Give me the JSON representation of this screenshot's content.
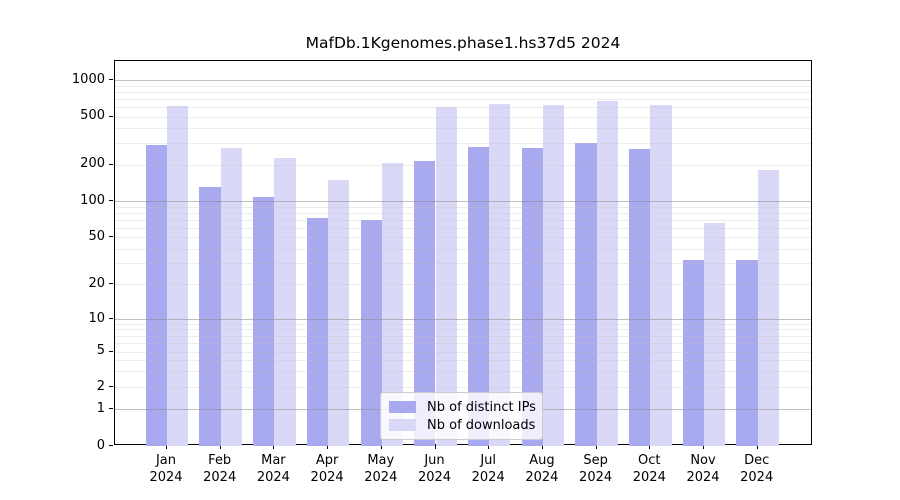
{
  "chart_data": {
    "type": "bar",
    "title": "MafDb.1Kgenomes.phase1.hs37d5 2024",
    "categories": [
      "Jan",
      "Feb",
      "Mar",
      "Apr",
      "May",
      "Jun",
      "Jul",
      "Aug",
      "Sep",
      "Oct",
      "Nov",
      "Dec"
    ],
    "xtick_year": "2024",
    "series": [
      {
        "name": "Nb of distinct IPs",
        "color": "#a9a9ef",
        "values": [
          290,
          130,
          108,
          72,
          70,
          215,
          280,
          275,
          305,
          268,
          32,
          32
        ]
      },
      {
        "name": "Nb of downloads",
        "color": "#d9d9f7",
        "values": [
          610,
          275,
          226,
          150,
          208,
          600,
          640,
          625,
          680,
          620,
          66,
          180
        ]
      }
    ],
    "yticks": [
      0,
      1,
      2,
      5,
      10,
      20,
      50,
      100,
      200,
      500,
      1000
    ],
    "yscale": "symlog",
    "ylim": [
      0,
      1400
    ],
    "grid": true,
    "grid_major_at": [
      1,
      10,
      100,
      1000
    ],
    "legend_position": "bottom-center",
    "axis_color": "#000000",
    "background_color": "#ffffff"
  }
}
